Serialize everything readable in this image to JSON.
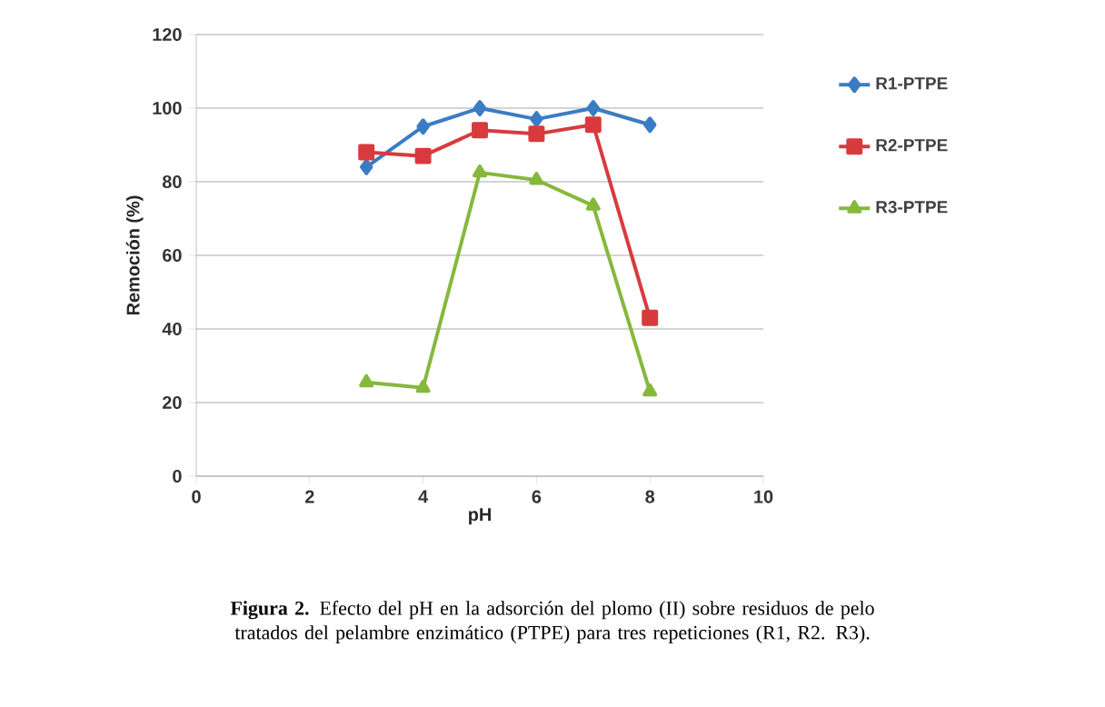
{
  "chart_data": {
    "type": "line",
    "xlabel": "pH",
    "ylabel": "Remoción (%)",
    "x": [
      3,
      4,
      5,
      6,
      7,
      8
    ],
    "series": [
      {
        "name": "R1-PTPE",
        "color": "#3a7cc4",
        "marker": "diamond",
        "values": [
          84,
          95,
          100,
          97,
          100,
          95.5
        ]
      },
      {
        "name": "R2-PTPE",
        "color": "#d83a3e",
        "marker": "square",
        "values": [
          88,
          87,
          94,
          93,
          95.5,
          43
        ]
      },
      {
        "name": "R3-PTPE",
        "color": "#86b83c",
        "marker": "triangle",
        "values": [
          25.5,
          24,
          82.5,
          80.5,
          73.5,
          23
        ]
      }
    ],
    "xlim": [
      0,
      10
    ],
    "xticks": [
      0,
      2,
      4,
      6,
      8,
      10
    ],
    "ylim": [
      0,
      120
    ],
    "yticks": [
      0,
      20,
      40,
      60,
      80,
      100,
      120
    ],
    "grid": "y",
    "legend": "right",
    "line_style": "solid",
    "annotations": [
      "**Figura 2.** Efecto del pH en la adsorción del plomo (II) sobre residuos de pelo tratados del pelambre enzimático (PTPE) para tres repeticiones (R1, R2. R3)."
    ]
  }
}
